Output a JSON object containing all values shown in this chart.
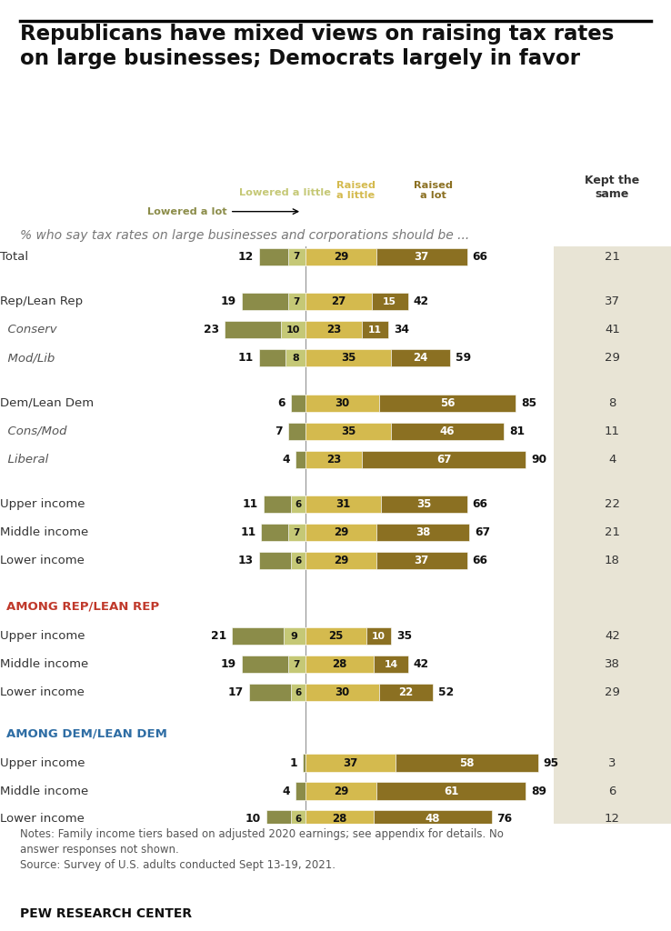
{
  "title": "Republicans have mixed views on raising tax rates\non large businesses; Democrats largely in favor",
  "subtitle": "% who say tax rates on large businesses and corporations should be ...",
  "notes": "Notes: Family income tiers based on adjusted 2020 earnings; see appendix for details. No\nanswer responses not shown.",
  "source": "Source: Survey of U.S. adults conducted Sept 13-19, 2021.",
  "footer": "PEW RESEARCH CENTER",
  "rows": [
    {
      "label": "Total",
      "indent": false,
      "ll": 12,
      "llit": 7,
      "rl": 29,
      "rlot": 37,
      "rsum": 66,
      "ks": 21,
      "style": "normal",
      "group_gap_after": true
    },
    {
      "label": "Rep/Lean Rep",
      "indent": false,
      "ll": 19,
      "llit": 7,
      "rl": 27,
      "rlot": 15,
      "rsum": 42,
      "ks": 37,
      "style": "normal",
      "group_gap_after": false
    },
    {
      "label": "Conserv",
      "indent": true,
      "ll": 23,
      "llit": 10,
      "rl": 23,
      "rlot": 11,
      "rsum": 34,
      "ks": 41,
      "style": "italic",
      "group_gap_after": false
    },
    {
      "label": "Mod/Lib",
      "indent": true,
      "ll": 11,
      "llit": 8,
      "rl": 35,
      "rlot": 24,
      "rsum": 59,
      "ks": 29,
      "style": "italic",
      "group_gap_after": true
    },
    {
      "label": "Dem/Lean Dem",
      "indent": false,
      "ll": 6,
      "llit": 0,
      "rl": 30,
      "rlot": 56,
      "rsum": 85,
      "ks": 8,
      "style": "normal",
      "group_gap_after": false
    },
    {
      "label": "Cons/Mod",
      "indent": true,
      "ll": 7,
      "llit": 0,
      "rl": 35,
      "rlot": 46,
      "rsum": 81,
      "ks": 11,
      "style": "italic",
      "group_gap_after": false
    },
    {
      "label": "Liberal",
      "indent": true,
      "ll": 4,
      "llit": 0,
      "rl": 23,
      "rlot": 67,
      "rsum": 90,
      "ks": 4,
      "style": "italic",
      "group_gap_after": true
    },
    {
      "label": "Upper income",
      "indent": false,
      "ll": 11,
      "llit": 6,
      "rl": 31,
      "rlot": 35,
      "rsum": 66,
      "ks": 22,
      "style": "normal",
      "group_gap_after": false
    },
    {
      "label": "Middle income",
      "indent": false,
      "ll": 11,
      "llit": 7,
      "rl": 29,
      "rlot": 38,
      "rsum": 67,
      "ks": 21,
      "style": "normal",
      "group_gap_after": false
    },
    {
      "label": "Lower income",
      "indent": false,
      "ll": 13,
      "llit": 6,
      "rl": 29,
      "rlot": 37,
      "rsum": 66,
      "ks": 18,
      "style": "normal",
      "group_gap_after": false
    },
    {
      "label": "AMONG REP/LEAN REP",
      "indent": false,
      "ll": null,
      "llit": null,
      "rl": null,
      "rlot": null,
      "rsum": null,
      "ks": null,
      "style": "section_rep",
      "group_gap_after": false
    },
    {
      "label": "Upper income",
      "indent": false,
      "ll": 21,
      "llit": 9,
      "rl": 25,
      "rlot": 10,
      "rsum": 35,
      "ks": 42,
      "style": "normal",
      "group_gap_after": false
    },
    {
      "label": "Middle income",
      "indent": false,
      "ll": 19,
      "llit": 7,
      "rl": 28,
      "rlot": 14,
      "rsum": 42,
      "ks": 38,
      "style": "normal",
      "group_gap_after": false
    },
    {
      "label": "Lower income",
      "indent": false,
      "ll": 17,
      "llit": 6,
      "rl": 30,
      "rlot": 22,
      "rsum": 52,
      "ks": 29,
      "style": "normal",
      "group_gap_after": false
    },
    {
      "label": "AMONG DEM/LEAN DEM",
      "indent": false,
      "ll": null,
      "llit": null,
      "rl": null,
      "rlot": null,
      "rsum": null,
      "ks": null,
      "style": "section_dem",
      "group_gap_after": false
    },
    {
      "label": "Upper income",
      "indent": false,
      "ll": 1,
      "llit": 0,
      "rl": 37,
      "rlot": 58,
      "rsum": 95,
      "ks": 3,
      "style": "normal",
      "group_gap_after": false
    },
    {
      "label": "Middle income",
      "indent": false,
      "ll": 4,
      "llit": 0,
      "rl": 29,
      "rlot": 61,
      "rsum": 89,
      "ks": 6,
      "style": "normal",
      "group_gap_after": false
    },
    {
      "label": "Lower income",
      "indent": false,
      "ll": 10,
      "llit": 6,
      "rl": 28,
      "rlot": 48,
      "rsum": 76,
      "ks": 12,
      "style": "normal",
      "group_gap_after": false
    }
  ],
  "colors": {
    "lowered_lot": "#8B8C49",
    "lowered_little": "#C5C876",
    "raised_little": "#D4BA4E",
    "raised_lot": "#8B7022",
    "kept_same_bg": "#E8E4D5",
    "section_rep": "#C0392B",
    "section_dem": "#2E6DA4",
    "center_line": "#999999",
    "label_normal": "#333333",
    "label_italic": "#555555",
    "number_dark": "#111111",
    "number_white": "#FFFFFF"
  }
}
